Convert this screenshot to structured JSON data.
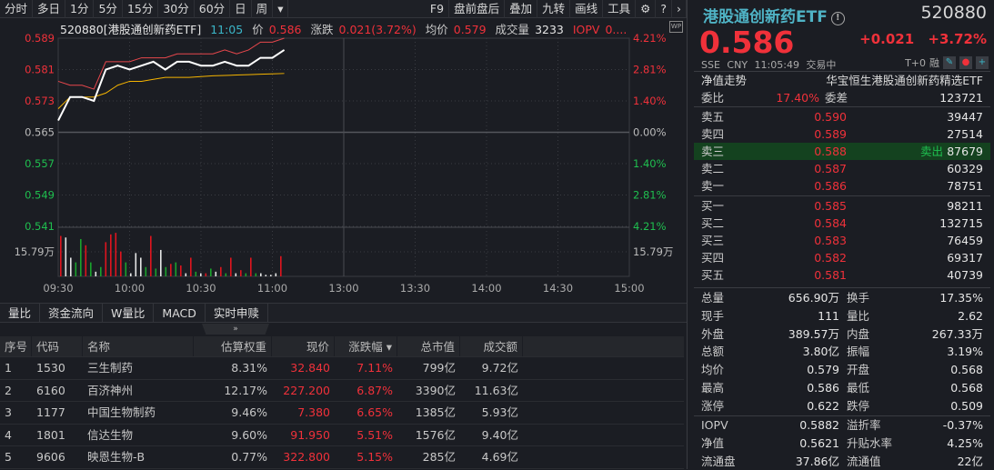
{
  "toolbar": {
    "left": [
      "分时",
      "多日",
      "1分",
      "5分",
      "15分",
      "30分",
      "60分",
      "日",
      "周"
    ],
    "dropdown": "▾",
    "right": [
      "F9",
      "盘前盘后",
      "叠加",
      "九转",
      "画线",
      "工具"
    ],
    "icons": [
      "gear-icon",
      "help-icon",
      "chevron-right-icon"
    ]
  },
  "chart_header": {
    "security": "520880[港股通创新药ETF]",
    "time": "11:05",
    "price_label": "价",
    "price": "0.586",
    "change_label": "涨跌",
    "change": "0.021(3.72%)",
    "avg_label": "均价",
    "avg": "0.579",
    "volume_label": "成交量",
    "volume": "3233",
    "iopv_label": "IOPV",
    "iopv": "0....",
    "wp_badge": "WP"
  },
  "chart_data": {
    "type": "line",
    "y_left_ticks": [
      "0.589",
      "0.581",
      "0.573",
      "0.565",
      "0.557",
      "0.549",
      "0.541"
    ],
    "y_right_ticks": [
      "4.21%",
      "2.81%",
      "1.40%",
      "0.00%",
      "1.40%",
      "2.81%",
      "4.21%"
    ],
    "ylim": [
      0.541,
      0.589
    ],
    "prev_close": 0.565,
    "x_ticks": [
      "09:30",
      "10:00",
      "10:30",
      "11:00",
      "13:00",
      "13:30",
      "14:00",
      "14:30",
      "15:00"
    ],
    "volume_label": "15.79万",
    "x_minutes": [
      0,
      5,
      10,
      15,
      20,
      25,
      30,
      35,
      40,
      45,
      50,
      55,
      60,
      65,
      70,
      75,
      80,
      85,
      90,
      95
    ],
    "series": [
      {
        "key": "price",
        "color": "#ffffff",
        "values": [
          0.568,
          0.574,
          0.574,
          0.573,
          0.581,
          0.582,
          0.581,
          0.582,
          0.583,
          0.581,
          0.583,
          0.583,
          0.582,
          0.582,
          0.583,
          0.582,
          0.582,
          0.584,
          0.584,
          0.586
        ]
      },
      {
        "key": "iopv",
        "color": "#e8474c",
        "values": [
          0.578,
          0.577,
          0.577,
          0.576,
          0.583,
          0.583,
          0.583,
          0.584,
          0.584,
          0.584,
          0.585,
          0.585,
          0.585,
          0.585,
          0.586,
          0.585,
          0.586,
          0.588,
          0.588,
          0.589
        ]
      },
      {
        "key": "average",
        "color": "#f5b400",
        "values": [
          0.571,
          0.574,
          0.574,
          0.574,
          0.575,
          0.577,
          0.578,
          0.578,
          0.5785,
          0.579,
          0.579,
          0.579,
          0.5792,
          0.5794,
          0.5795,
          0.5796,
          0.5797,
          0.5798,
          0.5799,
          0.58
        ]
      }
    ],
    "volume_max": 31.58,
    "volume": [
      [
        26,
        "r"
      ],
      [
        25,
        "w"
      ],
      [
        12,
        "w"
      ],
      [
        9,
        "g"
      ],
      [
        24,
        "g"
      ],
      [
        20,
        "r"
      ],
      [
        9,
        "g"
      ],
      [
        3,
        "w"
      ],
      [
        6,
        "g"
      ],
      [
        22,
        "r"
      ],
      [
        27,
        "r"
      ],
      [
        28,
        "r"
      ],
      [
        16,
        "r"
      ],
      [
        9,
        "g"
      ],
      [
        2,
        "w"
      ],
      [
        15,
        "w"
      ],
      [
        12,
        "w"
      ],
      [
        6,
        "g"
      ],
      [
        26,
        "r"
      ],
      [
        5,
        "g"
      ],
      [
        17,
        "w"
      ],
      [
        6,
        "g"
      ],
      [
        8,
        "r"
      ],
      [
        9,
        "g"
      ],
      [
        7,
        "r"
      ],
      [
        2,
        "w"
      ],
      [
        12,
        "r"
      ],
      [
        3,
        "g"
      ],
      [
        2,
        "w"
      ],
      [
        2,
        "r"
      ],
      [
        5,
        "g"
      ],
      [
        3,
        "w"
      ],
      [
        6,
        "r"
      ],
      [
        2,
        "g"
      ],
      [
        12,
        "r"
      ],
      [
        2,
        "w"
      ],
      [
        4,
        "r"
      ],
      [
        2,
        "g"
      ],
      [
        12,
        "r"
      ],
      [
        2,
        "g"
      ],
      [
        2,
        "w"
      ],
      [
        1,
        "w"
      ],
      [
        1,
        "w"
      ],
      [
        2,
        "w"
      ],
      [
        13,
        "r"
      ]
    ]
  },
  "bottom_tabs": [
    "量比",
    "资金流向",
    "W量比",
    "MACD",
    "实时申赎"
  ],
  "collapse_icon": "»",
  "table": {
    "headers": [
      "序号",
      "代码",
      "名称",
      "估算权重",
      "现价",
      "涨跌幅 ▾",
      "总市值",
      "成交额"
    ],
    "rows": [
      [
        "1",
        "1530",
        "三生制药",
        "8.31%",
        "32.840",
        "7.11%",
        "799亿",
        "9.72亿"
      ],
      [
        "2",
        "6160",
        "百济神州",
        "12.17%",
        "227.200",
        "6.87%",
        "3390亿",
        "11.63亿"
      ],
      [
        "3",
        "1177",
        "中国生物制药",
        "9.46%",
        "7.380",
        "6.65%",
        "1385亿",
        "5.93亿"
      ],
      [
        "4",
        "1801",
        "信达生物",
        "9.60%",
        "91.950",
        "5.51%",
        "1576亿",
        "9.40亿"
      ],
      [
        "5",
        "9606",
        "映恩生物-B",
        "0.77%",
        "322.800",
        "5.15%",
        "285亿",
        "4.69亿"
      ]
    ]
  },
  "quote": {
    "name": "港股通创新药ETF",
    "code": "520880",
    "price": "0.586",
    "change": "+0.021",
    "change_pct": "+3.72%",
    "meta": "SSE  CNY  11:05:49  交易中",
    "t0": "T+0",
    "rong": "融",
    "nav_trend": "净值走势",
    "full_name": "华宝恒生港股通创新药精选ETF",
    "weibi_label": "委比",
    "weibi": "17.40%",
    "weicha_label": "委差",
    "weicha": "123721",
    "asks": [
      [
        "卖五",
        "0.590",
        "39447"
      ],
      [
        "卖四",
        "0.589",
        "27514"
      ],
      [
        "卖三",
        "0.588",
        "87679"
      ],
      [
        "卖二",
        "0.587",
        "60329"
      ],
      [
        "卖一",
        "0.586",
        "78751"
      ]
    ],
    "sold_tag": "卖出",
    "bids": [
      [
        "买一",
        "0.585",
        "98211"
      ],
      [
        "买二",
        "0.584",
        "132715"
      ],
      [
        "买三",
        "0.583",
        "76459"
      ],
      [
        "买四",
        "0.582",
        "69317"
      ],
      [
        "买五",
        "0.581",
        "40739"
      ]
    ],
    "stats": [
      [
        "总量",
        "656.90万",
        "",
        "换手",
        "17.35%",
        ""
      ],
      [
        "现手",
        "111",
        "",
        "量比",
        "2.62",
        ""
      ],
      [
        "外盘",
        "389.57万",
        "red",
        "内盘",
        "267.33万",
        "green"
      ],
      [
        "总额",
        "3.80亿",
        "",
        "振幅",
        "3.19%",
        ""
      ],
      [
        "均价",
        "0.579",
        "red",
        "开盘",
        "0.568",
        "red"
      ],
      [
        "最高",
        "0.586",
        "red",
        "最低",
        "0.568",
        "red"
      ],
      [
        "涨停",
        "0.622",
        "red",
        "跌停",
        "0.509",
        "green"
      ]
    ],
    "etf_stats": [
      [
        "IOPV",
        "0.5882",
        "",
        "溢折率",
        "-0.37%",
        "green"
      ],
      [
        "净值",
        "0.5621",
        "red",
        "升贴水率",
        "4.25%",
        "red"
      ],
      [
        "流通盘",
        "37.86亿",
        "",
        "流通值",
        "22亿",
        ""
      ]
    ]
  },
  "colors": {
    "up": "#f0313a",
    "down": "#1fbf4f",
    "background": "#1b1d23",
    "accent": "#4fb3c5"
  }
}
